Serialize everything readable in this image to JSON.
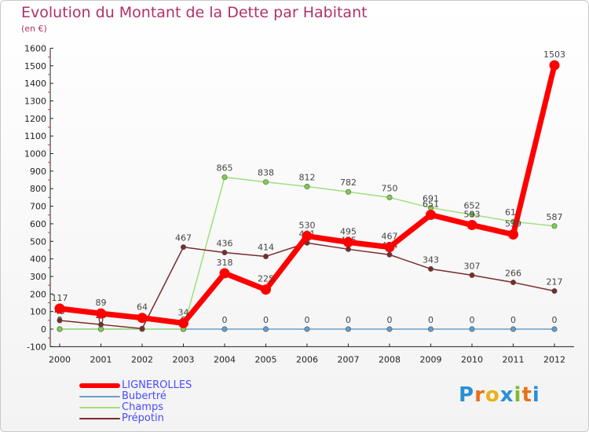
{
  "header": {
    "title": "Evolution du Montant de la Dette par Habitant",
    "subtitle": "(en €)"
  },
  "brand": {
    "letters": [
      "P",
      "r",
      "o",
      "x",
      "i",
      "t",
      "i"
    ],
    "colors": [
      "#2a8fd6",
      "#e7711b",
      "#e7b21b",
      "#2a8fd6",
      "#7dbb2b",
      "#e7711b",
      "#2a8fd6"
    ]
  },
  "chart_data": {
    "type": "line",
    "title": "Evolution du Montant de la Dette par Habitant",
    "subtitle": "(en €)",
    "xlabel": "",
    "ylabel": "",
    "x": [
      "2000",
      "2001",
      "2002",
      "2003",
      "2004",
      "2005",
      "2006",
      "2007",
      "2008",
      "2009",
      "2010",
      "2011",
      "2012"
    ],
    "ylim": [
      -100,
      1600
    ],
    "yticks": [
      "-100",
      "0",
      "100",
      "200",
      "300",
      "400",
      "500",
      "600",
      "700",
      "800",
      "900",
      "1000",
      "1100",
      "1200",
      "1300",
      "1400",
      "1500",
      "1600"
    ],
    "grid": false,
    "legend_position": "bottom-left",
    "series": [
      {
        "name": "Bubertré",
        "color": "#6b9fc8",
        "values": [
          0,
          0,
          0,
          0,
          0,
          0,
          0,
          0,
          0,
          0,
          0,
          0,
          0
        ],
        "labels": [
          "0",
          "0",
          "0",
          "0",
          "0",
          "0",
          "0",
          "0",
          "0",
          "0",
          "0",
          "0",
          "0"
        ]
      },
      {
        "name": "Champs",
        "color": "#9fdf7f",
        "values": [
          0,
          0,
          0,
          0,
          865,
          838,
          812,
          782,
          750,
          691,
          652,
          612,
          587
        ],
        "labels": [
          "0",
          "0",
          "0",
          "0",
          "865",
          "838",
          "812",
          "782",
          "750",
          "691",
          "652",
          "612",
          "587"
        ]
      },
      {
        "name": "Prépotin",
        "color": "#7a2b2b",
        "values": [
          49,
          26,
          3,
          467,
          436,
          414,
          491,
          455,
          424,
          343,
          307,
          266,
          217
        ],
        "labels": [
          "49",
          "26",
          "3",
          "467",
          "436",
          "414",
          "491",
          "455",
          "424",
          "343",
          "307",
          "266",
          "217"
        ]
      },
      {
        "name": "LIGNEROLLES",
        "color": "#ff0000",
        "values": [
          117,
          89,
          64,
          34,
          318,
          225,
          530,
          495,
          467,
          651,
          593,
          539,
          1503
        ],
        "labels": [
          "117",
          "89",
          "64",
          "34",
          "318",
          "225",
          "530",
          "495",
          "467",
          "651",
          "593",
          "539",
          "1503"
        ]
      }
    ]
  },
  "legend": [
    {
      "name": "LIGNEROLLES",
      "color": "#ff0000"
    },
    {
      "name": "Bubertré",
      "color": "#6b9fc8"
    },
    {
      "name": "Champs",
      "color": "#9fdf7f"
    },
    {
      "name": "Prépotin",
      "color": "#7a2b2b"
    }
  ]
}
